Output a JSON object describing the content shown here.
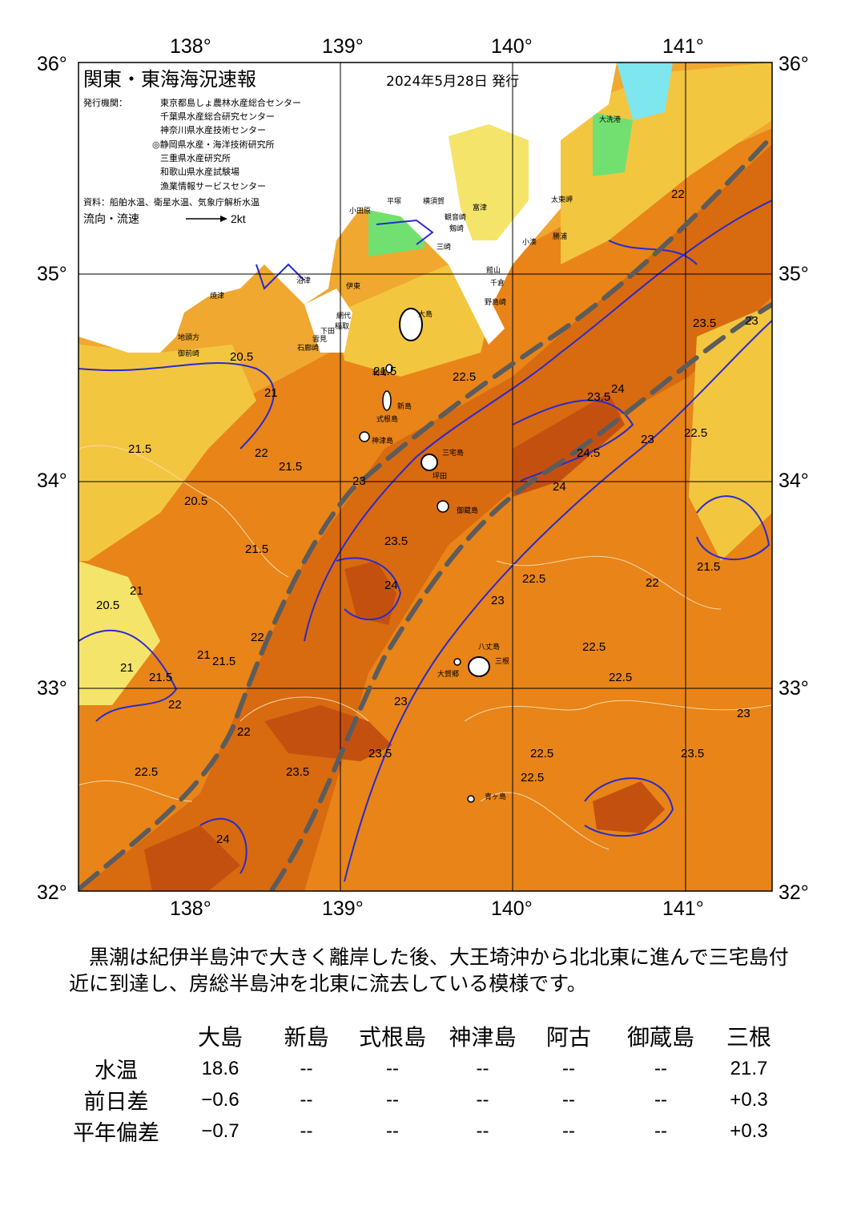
{
  "header": {
    "title": "関東・東海海況速報",
    "date": "2024年5月28日 発行",
    "issuer_label": "発行機関：",
    "issuers": [
      "東京都島しょ農林水産総合センター",
      "千葉県水産総合研究センター",
      "神奈川県水産技術センター",
      "◎静岡県水産・海洋技術研究所",
      "三重県水産研究所",
      "和歌山県水産試験場",
      "漁業情報サービスセンター"
    ],
    "sources": "資料：船舶水温、衛星水温、気象庁解析水温",
    "flow_label": "流向・流速",
    "flow_scale": "2kt"
  },
  "axes": {
    "lon_top": [
      "138°",
      "139°",
      "140°",
      "141°"
    ],
    "lon_bottom": [
      "138°",
      "139°",
      "140°",
      "141°"
    ],
    "lat_left": [
      "36°",
      "35°",
      "34°",
      "33°",
      "32°"
    ],
    "lat_right": [
      "36°",
      "35°",
      "34°",
      "33°",
      "32°"
    ]
  },
  "places": [
    "大洗港",
    "太東岬",
    "勝浦",
    "小湊",
    "館山",
    "千倉",
    "野島崎",
    "富津",
    "観音崎",
    "剱崎",
    "平塚",
    "横須賀",
    "小田原",
    "三崎",
    "伊東",
    "網代",
    "稲取",
    "下田",
    "石廊崎",
    "雲見",
    "沼津",
    "焼津",
    "御前崎",
    "地頭方",
    "大島",
    "利島",
    "新島",
    "式根島",
    "神津島",
    "三宅島",
    "坪田",
    "御蔵島",
    "八丈島",
    "三根",
    "大賀郷",
    "青ヶ島"
  ],
  "isotherms": [
    "21.5",
    "20.5",
    "21",
    "22",
    "22.5",
    "21.5",
    "21.5",
    "20.5",
    "21",
    "21.5",
    "22",
    "23",
    "23.5",
    "24",
    "24.5",
    "22.5",
    "23",
    "23.5",
    "24",
    "22.5",
    "22",
    "22.5",
    "21.5",
    "22",
    "23",
    "23.5",
    "24",
    "23",
    "22.5",
    "23.5",
    "22.5",
    "23",
    "23.5",
    "21",
    "21.5",
    "22",
    "20.5",
    "21",
    "21.5",
    "22",
    "22.5",
    "23",
    "23.5",
    "24",
    "22.5"
  ],
  "summary": "　黒潮は紀伊半島沖で大きく離岸した後、大王埼沖から北北東に進んで三宅島付近に到達し、房総半島沖を北東に流去している模様です。",
  "stations": [
    "大島",
    "新島",
    "式根島",
    "神津島",
    "阿古",
    "御蔵島",
    "三根"
  ],
  "rows": [
    {
      "label": "水温",
      "values": [
        "18.6",
        "--",
        "--",
        "--",
        "--",
        "--",
        "21.7"
      ]
    },
    {
      "label": "前日差",
      "values": [
        "−0.6",
        "--",
        "--",
        "--",
        "--",
        "--",
        "+0.3"
      ]
    },
    {
      "label": "平年偏差",
      "values": [
        "−0.7",
        "--",
        "--",
        "--",
        "--",
        "--",
        "+0.3"
      ]
    }
  ],
  "colors": {
    "land": "#ffffff",
    "t20": "#f5e46a",
    "t21": "#f3c640",
    "t22": "#f0a830",
    "t23": "#e88418",
    "t24": "#d86a10",
    "t25": "#c45010",
    "cold": "#7ee6ee",
    "cool": "#72e070",
    "axis_blue": "#2a2ad0",
    "current": "#5c5c5c"
  }
}
